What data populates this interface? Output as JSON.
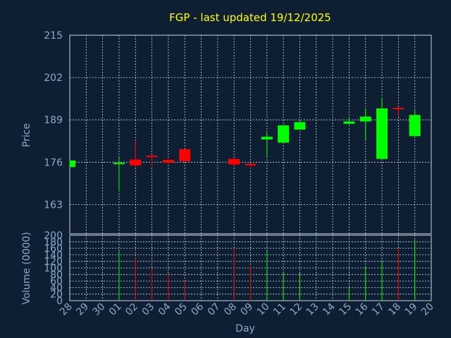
{
  "chart_data": {
    "type": "candlestick",
    "title": "FGP - last updated 19/12/2025",
    "price_panel": {
      "ylabel": "Price",
      "ylim": [
        154,
        215
      ],
      "yticks": [
        215,
        202,
        189,
        176,
        163
      ],
      "grid": true
    },
    "volume_panel": {
      "ylabel": "Volume (0000)",
      "ylim": [
        0,
        200
      ],
      "yticks": [
        0,
        20,
        40,
        60,
        80,
        100,
        120,
        140,
        160,
        180,
        200
      ],
      "grid": true
    },
    "xlabel": "Day",
    "x_ticks": [
      "28",
      "29",
      "30",
      "01",
      "02",
      "03",
      "04",
      "05",
      "06",
      "07",
      "08",
      "09",
      "10",
      "11",
      "12",
      "13",
      "14",
      "15",
      "16",
      "17",
      "18",
      "19",
      "20"
    ],
    "candles": [
      {
        "day": "28",
        "open": 174.5,
        "high": 176.5,
        "low": 174.5,
        "close": 176.5,
        "volume": 0
      },
      {
        "day": "01",
        "open": 175.5,
        "high": 177.5,
        "low": 167.0,
        "close": 175.8,
        "volume": 155
      },
      {
        "day": "02",
        "open": 176.8,
        "high": 182.5,
        "low": 174.5,
        "close": 175.0,
        "volume": 130
      },
      {
        "day": "03",
        "open": 178.0,
        "high": 178.0,
        "low": 174.5,
        "close": 177.8,
        "volume": 100
      },
      {
        "day": "04",
        "open": 176.7,
        "high": 177.0,
        "low": 175.8,
        "close": 175.8,
        "volume": 80
      },
      {
        "day": "05",
        "open": 180.0,
        "high": 180.0,
        "low": 176.3,
        "close": 176.3,
        "volume": 60
      },
      {
        "day": "08",
        "open": 177.0,
        "high": 177.2,
        "low": 175.0,
        "close": 175.3,
        "volume": 160
      },
      {
        "day": "09",
        "open": 175.5,
        "high": 175.5,
        "low": 174.0,
        "close": 175.0,
        "volume": 105
      },
      {
        "day": "10",
        "open": 183.0,
        "high": 185.0,
        "low": 177.5,
        "close": 183.8,
        "volume": 155
      },
      {
        "day": "11",
        "open": 182.0,
        "high": 187.5,
        "low": 182.0,
        "close": 187.3,
        "volume": 85
      },
      {
        "day": "12",
        "open": 186.0,
        "high": 188.5,
        "low": 186.0,
        "close": 188.3,
        "volume": 85
      },
      {
        "day": "15",
        "open": 187.8,
        "high": 189.8,
        "low": 187.5,
        "close": 188.5,
        "volume": 40
      },
      {
        "day": "16",
        "open": 188.5,
        "high": 192.5,
        "low": 183.0,
        "close": 190.0,
        "volume": 105
      },
      {
        "day": "17",
        "open": 177.0,
        "high": 196.0,
        "low": 177.0,
        "close": 192.5,
        "volume": 120
      },
      {
        "day": "18",
        "open": 192.7,
        "high": 192.8,
        "low": 190.0,
        "close": 192.5,
        "volume": 160
      },
      {
        "day": "19",
        "open": 184.0,
        "high": 192.0,
        "low": 184.0,
        "close": 190.5,
        "volume": 185
      }
    ],
    "colors": {
      "up": "#00ff00",
      "down": "#ff0000",
      "background": "#0f1f33",
      "title": "#ffff00",
      "axis_text": "#8aa9c9"
    }
  }
}
